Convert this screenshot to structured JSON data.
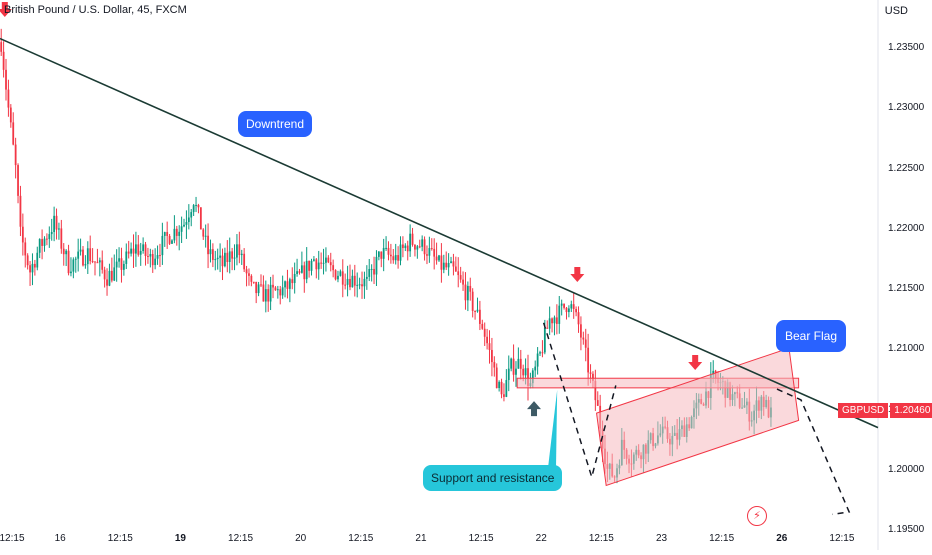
{
  "title": "British Pound / U.S. Dollar, 45, FXCM",
  "currency": "USD",
  "symbol": "GBPUSD",
  "last_price": "1.20460",
  "colors": {
    "up": "#089981",
    "down": "#f23645",
    "trendline": "#1b3b34",
    "annotation_blue": "#2962ff",
    "annotation_cyan": "#26c6da",
    "zone_fill": "#f6b9bf"
  },
  "annotations": {
    "downtrend": "Downtrend",
    "support_resistance": "Support and resistance",
    "bear_flag": "Bear Flag"
  },
  "chart_data": {
    "type": "candlestick",
    "title": "British Pound / U.S. Dollar, 45, FXCM",
    "ylabel": "USD",
    "ylim": [
      1.195,
      1.239
    ],
    "y_ticks": [
      "1.23500",
      "1.23000",
      "1.22500",
      "1.22000",
      "1.21500",
      "1.21000",
      "1.20500",
      "1.20000",
      "1.19500"
    ],
    "x_ticks": [
      {
        "label": "12:15",
        "bold": false
      },
      {
        "label": "16",
        "bold": false
      },
      {
        "label": "12:15",
        "bold": false
      },
      {
        "label": "19",
        "bold": true
      },
      {
        "label": "12:15",
        "bold": false
      },
      {
        "label": "20",
        "bold": false
      },
      {
        "label": "12:15",
        "bold": false
      },
      {
        "label": "21",
        "bold": false
      },
      {
        "label": "12:15",
        "bold": false
      },
      {
        "label": "22",
        "bold": false
      },
      {
        "label": "12:15",
        "bold": false
      },
      {
        "label": "23",
        "bold": false
      },
      {
        "label": "12:15",
        "bold": false
      },
      {
        "label": "26",
        "bold": true
      },
      {
        "label": "12:15",
        "bold": false
      }
    ],
    "x_tick_index": [
      0,
      25,
      50,
      75,
      100,
      125,
      150,
      175,
      200,
      225,
      250,
      275,
      300,
      325,
      350
    ],
    "x_range": [
      0,
      365
    ],
    "price_path": [
      [
        0,
        1.2355
      ],
      [
        3,
        1.23
      ],
      [
        6,
        1.225
      ],
      [
        8,
        1.2195
      ],
      [
        12,
        1.2165
      ],
      [
        16,
        1.2185
      ],
      [
        22,
        1.2205
      ],
      [
        28,
        1.217
      ],
      [
        36,
        1.218
      ],
      [
        44,
        1.216
      ],
      [
        50,
        1.217
      ],
      [
        56,
        1.2185
      ],
      [
        62,
        1.2175
      ],
      [
        70,
        1.2195
      ],
      [
        76,
        1.2205
      ],
      [
        80,
        1.2225
      ],
      [
        86,
        1.218
      ],
      [
        92,
        1.217
      ],
      [
        98,
        1.2185
      ],
      [
        104,
        1.215
      ],
      [
        110,
        1.2145
      ],
      [
        118,
        1.215
      ],
      [
        124,
        1.216
      ],
      [
        130,
        1.2175
      ],
      [
        138,
        1.2165
      ],
      [
        144,
        1.216
      ],
      [
        152,
        1.2155
      ],
      [
        158,
        1.218
      ],
      [
        164,
        1.2175
      ],
      [
        170,
        1.219
      ],
      [
        176,
        1.2185
      ],
      [
        182,
        1.217
      ],
      [
        188,
        1.2165
      ],
      [
        194,
        1.2145
      ],
      [
        200,
        1.212
      ],
      [
        204,
        1.209
      ],
      [
        208,
        1.206
      ],
      [
        212,
        1.2085
      ],
      [
        216,
        1.209
      ],
      [
        220,
        1.207
      ],
      [
        224,
        1.2095
      ],
      [
        228,
        1.2125
      ],
      [
        232,
        1.213
      ],
      [
        236,
        1.214
      ],
      [
        240,
        1.212
      ],
      [
        244,
        1.2085
      ],
      [
        248,
        1.205
      ],
      [
        252,
        1.2
      ],
      [
        255,
        1.1995
      ],
      [
        258,
        1.202
      ],
      [
        262,
        1.201
      ],
      [
        268,
        1.202
      ],
      [
        274,
        1.203
      ],
      [
        280,
        1.2025
      ],
      [
        286,
        1.204
      ],
      [
        292,
        1.206
      ],
      [
        296,
        1.2075
      ],
      [
        300,
        1.207
      ],
      [
        304,
        1.206
      ],
      [
        308,
        1.2055
      ],
      [
        312,
        1.2045
      ],
      [
        316,
        1.206
      ],
      [
        320,
        1.2045
      ]
    ],
    "trendline": [
      [
        0,
        1.2358
      ],
      [
        365,
        1.2035
      ]
    ],
    "support_resistance_zone": {
      "x": [
        215,
        332
      ],
      "y": [
        1.2068,
        1.2076
      ]
    },
    "flag_channel": {
      "upper": [
        [
          248,
          1.2047
        ],
        [
          328,
          1.2101
        ]
      ],
      "lower": [
        [
          252,
          1.1987
        ],
        [
          332,
          1.2041
        ]
      ]
    },
    "projection_left": [
      [
        226,
        1.2122
      ],
      [
        246,
        1.1994
      ],
      [
        256,
        1.207
      ]
    ],
    "projection_right": [
      [
        323,
        1.2067
      ],
      [
        333,
        1.2058
      ],
      [
        353,
        1.1965
      ],
      [
        346,
        1.1963
      ]
    ],
    "markers": [
      {
        "type": "arrow-down",
        "x": 2,
        "y": 1.238,
        "color": "#f23645"
      },
      {
        "type": "arrow-down",
        "x": 240,
        "y": 1.216,
        "color": "#f23645"
      },
      {
        "type": "arrow-down",
        "x": 289,
        "y": 1.2087,
        "color": "#f23645"
      },
      {
        "type": "arrow-up",
        "x": 222,
        "y": 1.2052,
        "color": "#3d5a65"
      }
    ]
  }
}
